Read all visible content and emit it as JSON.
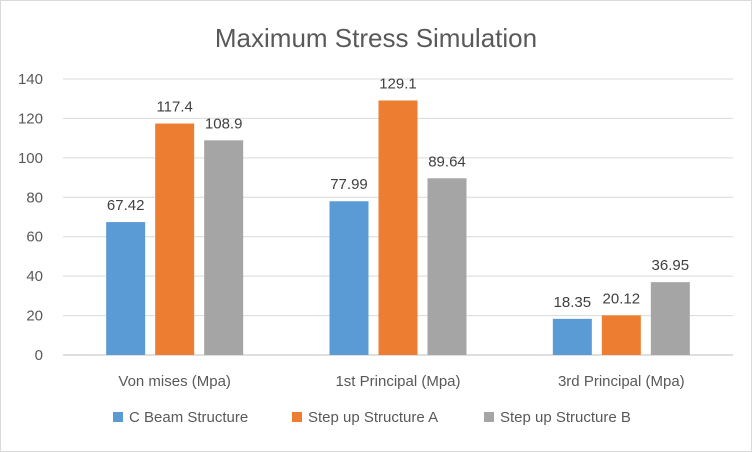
{
  "chart_data": {
    "type": "bar",
    "title": "Maximum Stress Simulation",
    "xlabel": "",
    "ylabel": "",
    "categories": [
      "Von mises (Mpa)",
      "1st Principal (Mpa)",
      "3rd Principal (Mpa)"
    ],
    "series": [
      {
        "name": "C Beam Structure",
        "color": "#5b9bd5",
        "values": [
          67.42,
          77.99,
          18.35
        ],
        "labels": [
          "67.42",
          "77.99",
          "18.35"
        ]
      },
      {
        "name": "Step up Structure A",
        "color": "#ed7d31",
        "values": [
          117.4,
          129.1,
          20.12
        ],
        "labels": [
          "117.4",
          "129.1",
          "20.12"
        ]
      },
      {
        "name": "Step up Structure B",
        "color": "#a5a5a5",
        "values": [
          108.9,
          89.64,
          36.95
        ],
        "labels": [
          "108.9",
          "89.64",
          "36.95"
        ]
      }
    ],
    "ylim": [
      0,
      140
    ],
    "yticks": [
      0,
      20,
      40,
      60,
      80,
      100,
      120,
      140
    ],
    "grid": true,
    "legend": "bottom"
  }
}
